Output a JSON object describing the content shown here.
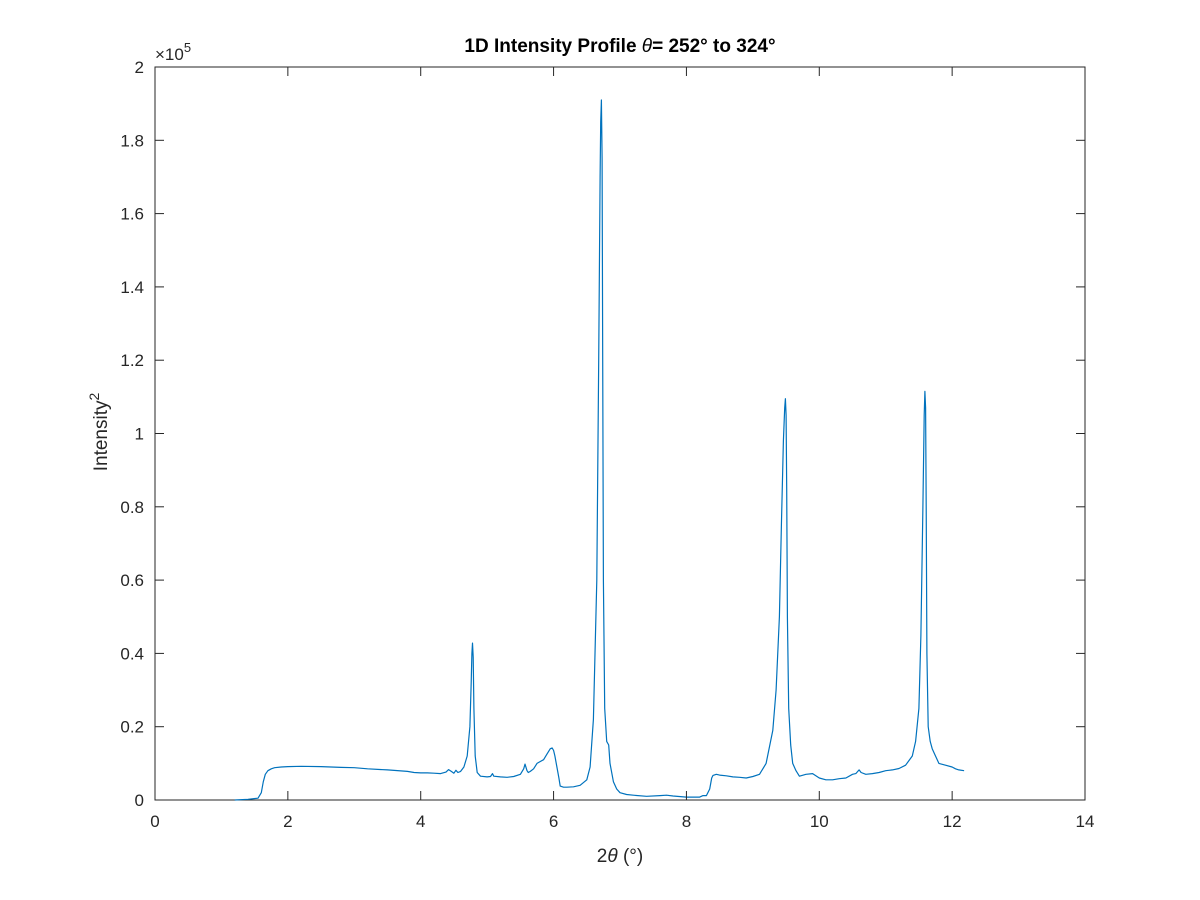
{
  "chart_data": {
    "type": "line",
    "title": "1D Intensity Profile θ= 252° to 324°",
    "title_parts": {
      "prefix": "1D Intensity Profile ",
      "symbol": "θ",
      "suffix": "= 252° to 324°"
    },
    "xlabel": "2θ (°)",
    "xlabel_parts": {
      "prefix": "2",
      "symbol": "θ",
      "suffix": " (°)"
    },
    "ylabel": "Intensity²",
    "ylabel_parts": {
      "base": "Intensity",
      "sup": "2"
    },
    "y_exponent": {
      "base": "×10",
      "power": "5"
    },
    "xlim": [
      0,
      14
    ],
    "ylim": [
      0,
      2
    ],
    "x_ticks": [
      0,
      2,
      4,
      6,
      8,
      10,
      12,
      14
    ],
    "x_tick_labels": [
      "0",
      "2",
      "4",
      "6",
      "8",
      "10",
      "12",
      "14"
    ],
    "y_ticks": [
      0,
      0.2,
      0.4,
      0.6,
      0.8,
      1,
      1.2,
      1.4,
      1.6,
      1.8,
      2
    ],
    "y_tick_labels": [
      "0",
      "0.2",
      "0.4",
      "0.6",
      "0.8",
      "1",
      "1.2",
      "1.4",
      "1.6",
      "1.8",
      "2"
    ],
    "grid": false,
    "line_color": "#0072BD",
    "series": [
      {
        "x": [
          1.2,
          1.4,
          1.55,
          1.6,
          1.63,
          1.66,
          1.7,
          1.75,
          1.8,
          1.9,
          2.0,
          2.2,
          2.5,
          2.8,
          3.0,
          3.2,
          3.5,
          3.8,
          3.9,
          4.0,
          4.1,
          4.2,
          4.3,
          4.38,
          4.42,
          4.46,
          4.5,
          4.53,
          4.56,
          4.6,
          4.65,
          4.7,
          4.74,
          4.76,
          4.77,
          4.78,
          4.79,
          4.8,
          4.82,
          4.85,
          4.9,
          5.0,
          5.05,
          5.08,
          5.1,
          5.2,
          5.3,
          5.4,
          5.5,
          5.55,
          5.57,
          5.6,
          5.62,
          5.65,
          5.7,
          5.75,
          5.8,
          5.85,
          5.9,
          5.95,
          5.98,
          6.0,
          6.02,
          6.05,
          6.08,
          6.1,
          6.15,
          6.2,
          6.3,
          6.4,
          6.5,
          6.55,
          6.6,
          6.65,
          6.68,
          6.7,
          6.71,
          6.72,
          6.73,
          6.74,
          6.75,
          6.77,
          6.8,
          6.83,
          6.85,
          6.9,
          6.95,
          7.0,
          7.1,
          7.2,
          7.4,
          7.6,
          7.7,
          7.8,
          8.0,
          8.2,
          8.25,
          8.3,
          8.35,
          8.38,
          8.4,
          8.45,
          8.5,
          8.6,
          8.7,
          8.8,
          8.9,
          9.0,
          9.1,
          9.2,
          9.3,
          9.35,
          9.4,
          9.43,
          9.46,
          9.48,
          9.49,
          9.5,
          9.51,
          9.52,
          9.54,
          9.57,
          9.6,
          9.65,
          9.7,
          9.8,
          9.9,
          10.0,
          10.1,
          10.2,
          10.3,
          10.4,
          10.5,
          10.55,
          10.6,
          10.63,
          10.7,
          10.8,
          10.9,
          11.0,
          11.1,
          11.2,
          11.3,
          11.4,
          11.45,
          11.5,
          11.53,
          11.56,
          11.58,
          11.59,
          11.6,
          11.61,
          11.62,
          11.64,
          11.67,
          11.7,
          11.75,
          11.8,
          11.9,
          12.0,
          12.05,
          12.1,
          12.18
        ],
        "values": [
          0.0,
          0.002,
          0.005,
          0.02,
          0.05,
          0.07,
          0.08,
          0.085,
          0.088,
          0.09,
          0.091,
          0.092,
          0.091,
          0.089,
          0.088,
          0.085,
          0.082,
          0.078,
          0.075,
          0.074,
          0.074,
          0.073,
          0.072,
          0.076,
          0.083,
          0.078,
          0.073,
          0.081,
          0.075,
          0.078,
          0.09,
          0.12,
          0.2,
          0.32,
          0.4,
          0.428,
          0.39,
          0.25,
          0.12,
          0.075,
          0.065,
          0.063,
          0.064,
          0.072,
          0.065,
          0.063,
          0.062,
          0.064,
          0.07,
          0.085,
          0.098,
          0.08,
          0.075,
          0.078,
          0.085,
          0.1,
          0.105,
          0.11,
          0.125,
          0.14,
          0.142,
          0.135,
          0.12,
          0.09,
          0.06,
          0.038,
          0.035,
          0.035,
          0.036,
          0.04,
          0.055,
          0.09,
          0.22,
          0.6,
          1.2,
          1.7,
          1.85,
          1.91,
          1.75,
          1.2,
          0.6,
          0.25,
          0.16,
          0.15,
          0.1,
          0.05,
          0.03,
          0.02,
          0.015,
          0.013,
          0.01,
          0.012,
          0.013,
          0.011,
          0.008,
          0.008,
          0.012,
          0.012,
          0.03,
          0.06,
          0.067,
          0.07,
          0.068,
          0.066,
          0.063,
          0.062,
          0.06,
          0.064,
          0.07,
          0.1,
          0.19,
          0.3,
          0.5,
          0.75,
          0.98,
          1.07,
          1.095,
          1.05,
          0.85,
          0.5,
          0.25,
          0.15,
          0.1,
          0.08,
          0.065,
          0.07,
          0.072,
          0.06,
          0.055,
          0.055,
          0.058,
          0.06,
          0.07,
          0.072,
          0.082,
          0.075,
          0.07,
          0.072,
          0.075,
          0.08,
          0.082,
          0.086,
          0.095,
          0.12,
          0.16,
          0.25,
          0.45,
          0.8,
          1.05,
          1.115,
          1.07,
          0.8,
          0.4,
          0.2,
          0.16,
          0.14,
          0.12,
          0.1,
          0.095,
          0.09,
          0.085,
          0.082,
          0.08
        ]
      }
    ]
  }
}
